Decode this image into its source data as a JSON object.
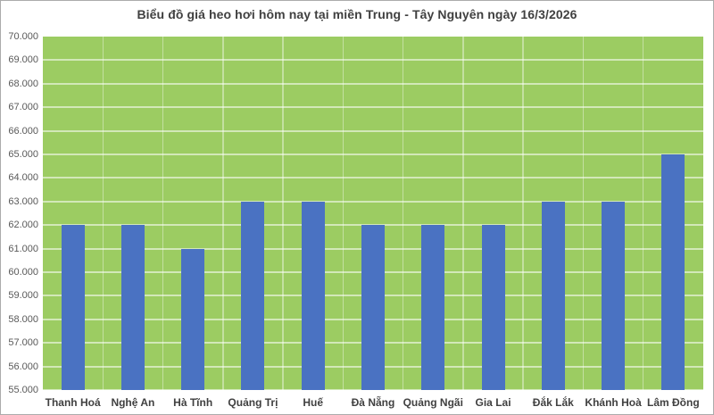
{
  "chart_data": {
    "type": "bar",
    "title": "Biểu đồ giá heo hơi hôm nay tại miền Trung - Tây Nguyên ngày 16/3/2026",
    "categories": [
      "Thanh Hoá",
      "Nghệ An",
      "Hà Tĩnh",
      "Quảng Trị",
      "Huế",
      "Đà Nẵng",
      "Quảng Ngãi",
      "Gia Lai",
      "Đắk Lắk",
      "Khánh Hoà",
      "Lâm Đồng"
    ],
    "values": [
      62000,
      62000,
      61000,
      63000,
      63000,
      62000,
      62000,
      62000,
      63000,
      63000,
      65000
    ],
    "y_tick_labels": [
      "70.000",
      "69.000",
      "68.000",
      "67.000",
      "66.000",
      "65.000",
      "64.000",
      "63.000",
      "62.000",
      "61.000",
      "60.000",
      "59.000",
      "58.000",
      "57.000",
      "56.000",
      "55.000"
    ],
    "ylim": [
      55000,
      70000
    ],
    "ytick_step": 1000,
    "xlabel": "",
    "ylabel": "",
    "grid": true,
    "legend": "none",
    "colors": {
      "bar": "#4a72c2",
      "plot_background": "#9ccc62",
      "gridline": "rgba(255,255,255,0.55)",
      "title_text": "#404040",
      "axis_tick_text": "#595959",
      "frame_border": "#ababab",
      "page_background": "#ffffff"
    }
  }
}
